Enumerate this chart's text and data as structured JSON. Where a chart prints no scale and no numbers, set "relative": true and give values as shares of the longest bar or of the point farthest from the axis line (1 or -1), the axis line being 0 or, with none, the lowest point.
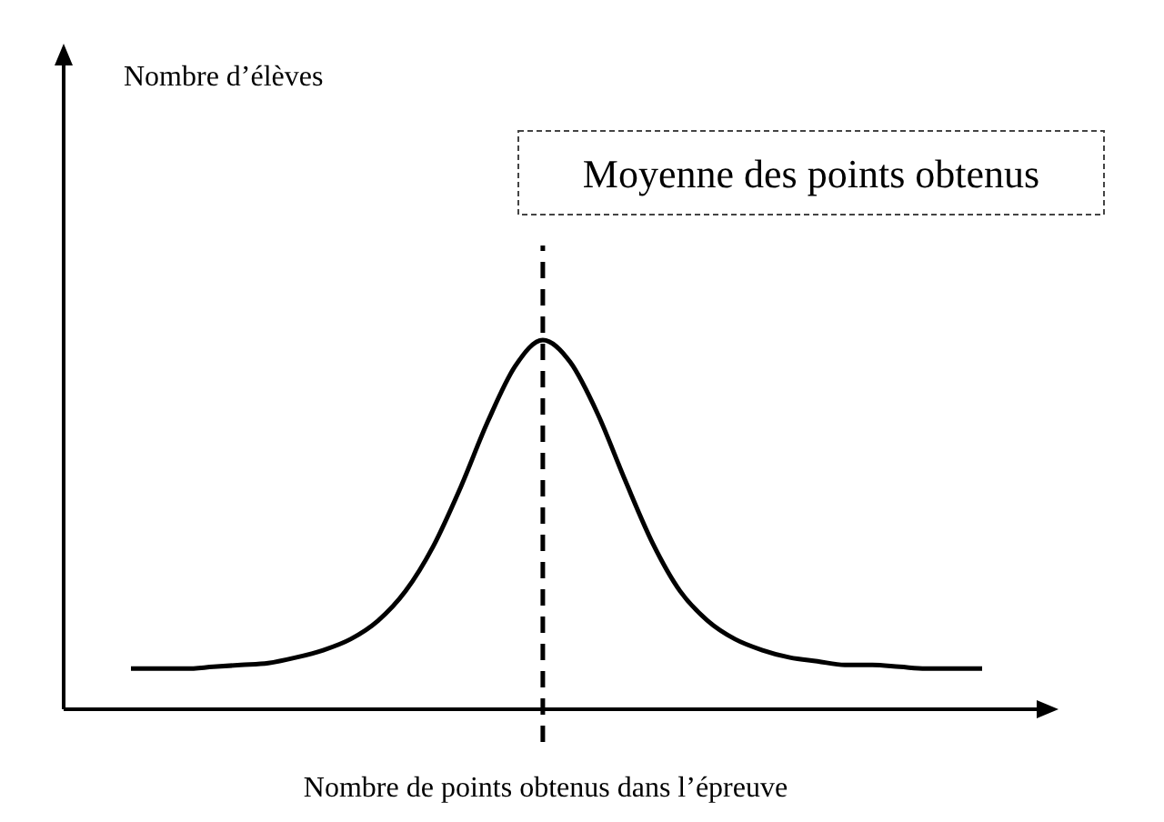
{
  "chart_data": {
    "type": "line",
    "relative": true,
    "xlabel": "Nombre de points obtenus dans l’épreuve",
    "categories": [
      null,
      null,
      null,
      null,
      null,
      null,
      null,
      null,
      null,
      null,
      null,
      null,
      null,
      null,
      null,
      null,
      null,
      null,
      null,
      null,
      null,
      null,
      null,
      null,
      null,
      null,
      null,
      null,
      null,
      null,
      null,
      null
    ],
    "series": [
      {
        "color": "#000000",
        "values": [
          0.11,
          0.11,
          0.11,
          0.115,
          0.12,
          0.125,
          0.14,
          0.16,
          0.19,
          0.24,
          0.32,
          0.44,
          0.6,
          0.78,
          0.93,
          1,
          0.94,
          0.8,
          0.62,
          0.45,
          0.32,
          0.24,
          0.19,
          0.16,
          0.14,
          0.13,
          0.12,
          0.12,
          0.115,
          0.11,
          0.11,
          0.11
        ]
      }
    ],
    "annotations": [
      "Moyenne des points obtenus",
      "Nombre d’élèves"
    ],
    "marker": "none",
    "line_style": "solid",
    "grid": false,
    "legend": false
  }
}
